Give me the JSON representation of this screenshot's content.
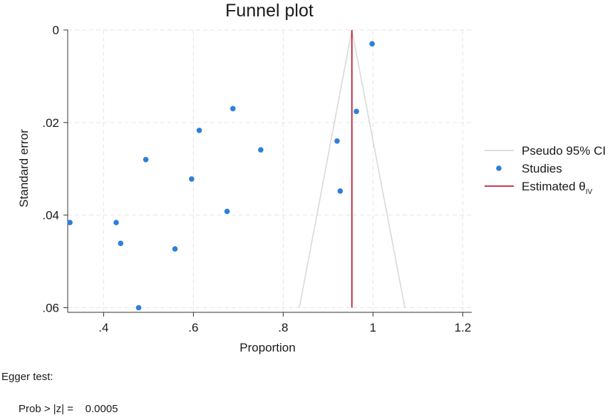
{
  "chart_data": {
    "type": "scatter",
    "title": "Funnel plot",
    "xlabel": "Proportion",
    "ylabel": "Standard error",
    "xlim": [
      0.32,
      1.22
    ],
    "ylim": [
      0,
      0.061
    ],
    "y_reversed": true,
    "xticks": [
      0.4,
      0.6,
      0.8,
      1,
      1.2
    ],
    "xtick_labels": [
      ".4",
      ".6",
      ".8",
      "1",
      "1.2"
    ],
    "yticks": [
      0,
      0.02,
      0.04,
      0.06
    ],
    "ytick_labels": [
      "0",
      ".02",
      ".04",
      ".06"
    ],
    "grid": true,
    "legend_position": "right",
    "estimated_theta": 0.953,
    "ci_lines": {
      "name": "Pseudo 95% CI",
      "color": "#d9d9d9",
      "left": [
        {
          "x": 0.953,
          "y": 0
        },
        {
          "x": 0.836,
          "y": 0.06
        }
      ],
      "right": [
        {
          "x": 0.953,
          "y": 0
        },
        {
          "x": 1.071,
          "y": 0.06
        }
      ]
    },
    "series": [
      {
        "name": "Studies",
        "color": "#2f7fd8",
        "points": [
          {
            "x": 0.998,
            "y": 0.003
          },
          {
            "x": 0.688,
            "y": 0.017
          },
          {
            "x": 0.963,
            "y": 0.0176
          },
          {
            "x": 0.613,
            "y": 0.0217
          },
          {
            "x": 0.92,
            "y": 0.024
          },
          {
            "x": 0.75,
            "y": 0.0259
          },
          {
            "x": 0.494,
            "y": 0.028
          },
          {
            "x": 0.596,
            "y": 0.0322
          },
          {
            "x": 0.927,
            "y": 0.0348
          },
          {
            "x": 0.675,
            "y": 0.0392
          },
          {
            "x": 0.325,
            "y": 0.0416
          },
          {
            "x": 0.428,
            "y": 0.0416
          },
          {
            "x": 0.438,
            "y": 0.0461
          },
          {
            "x": 0.559,
            "y": 0.0473
          },
          {
            "x": 0.478,
            "y": 0.06
          }
        ]
      }
    ],
    "estimate_line": {
      "name": "Estimated θ",
      "subscript": "IV",
      "color": "#c0203a"
    },
    "legend": [
      {
        "label": "Pseudo 95% CI",
        "kind": "line",
        "color": "#d9d9d9"
      },
      {
        "label": "Studies",
        "kind": "dot",
        "color": "#2f7fd8"
      },
      {
        "label": "Estimated θ",
        "subscript": "IV",
        "kind": "line",
        "color": "#c0203a"
      }
    ]
  },
  "egger": {
    "title": "Egger test:",
    "label": "Prob > |z| =",
    "value": "0.0005"
  }
}
